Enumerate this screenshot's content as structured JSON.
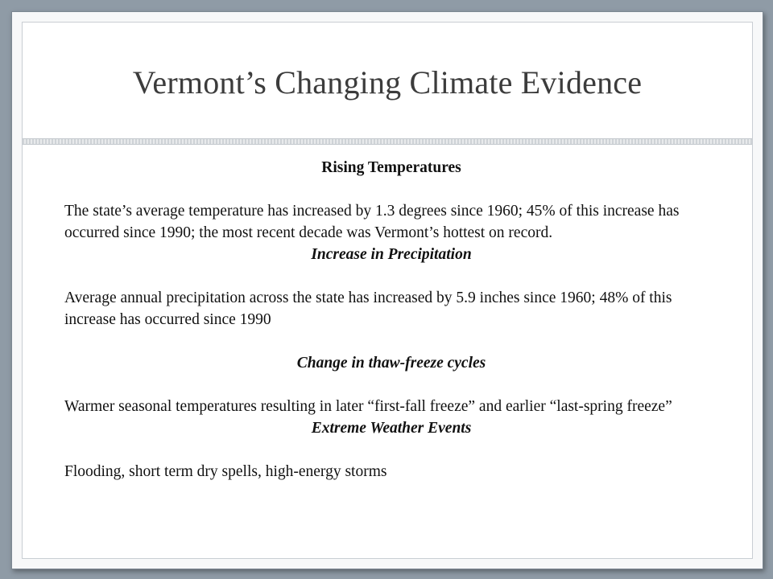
{
  "slide": {
    "title": "Vermont’s Changing Climate Evidence",
    "sections": [
      {
        "heading": "Rising Temperatures",
        "body": "The state’s average temperature has increased by 1.3 degrees since 1960; 45% of this increase has occurred since 1990; the most recent decade was Vermont’s hottest on record."
      },
      {
        "heading": "Increase in Precipitation",
        "body": "Average annual precipitation across the state has increased by 5.9 inches since 1960; 48% of this increase has occurred since 1990"
      },
      {
        "heading": "Change in thaw-freeze cycles",
        "body": "Warmer seasonal temperatures resulting in later “first-fall freeze” and earlier “last-spring freeze”"
      },
      {
        "heading": "Extreme Weather Events",
        "body": "Flooding, short term dry spells, high-energy storms"
      }
    ]
  }
}
